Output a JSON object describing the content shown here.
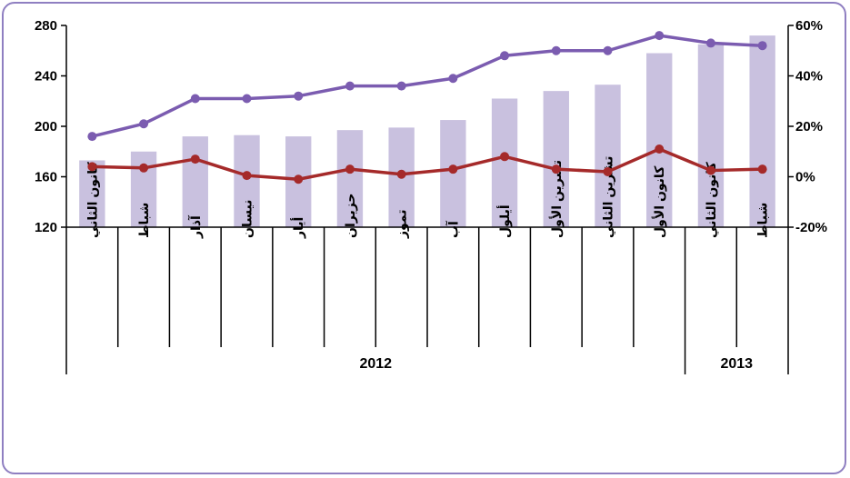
{
  "chart_data": {
    "type": "bar+line",
    "categories": [
      "كانون الثاني",
      "شباط",
      "آذار",
      "نيسان",
      "أيار",
      "حزيران",
      "تموز",
      "آب",
      "أيلول",
      "تشرين الأول",
      "تشرين الثاني",
      "كانون الأول",
      "كانون الثاني",
      "شباط"
    ],
    "year_groups": [
      {
        "label": "2012",
        "count": 12
      },
      {
        "label": "2013",
        "count": 2
      }
    ],
    "bars": {
      "axis": "left",
      "color": "#c9c1df",
      "values": [
        173,
        180,
        192,
        193,
        192,
        197,
        199,
        205,
        222,
        228,
        233,
        258,
        265,
        272
      ]
    },
    "lines": [
      {
        "axis": "right",
        "color": "#7b5cb0",
        "values": [
          16,
          21,
          31,
          31,
          32,
          36,
          36,
          39,
          48,
          50,
          50,
          56,
          53,
          52
        ]
      },
      {
        "axis": "right",
        "color": "#a52a2a",
        "values": [
          4,
          3.5,
          7,
          0.5,
          -1,
          3,
          1,
          3,
          8,
          3,
          2,
          11,
          2.5,
          3
        ]
      }
    ],
    "y_left": {
      "min": 120,
      "max": 280,
      "ticks": [
        "120",
        "160",
        "200",
        "240",
        "280"
      ]
    },
    "y_right": {
      "min": -20,
      "max": 60,
      "ticks": [
        "-20%",
        "0%",
        "20%",
        "40%",
        "60%"
      ]
    },
    "grid": false,
    "legend": "none"
  }
}
